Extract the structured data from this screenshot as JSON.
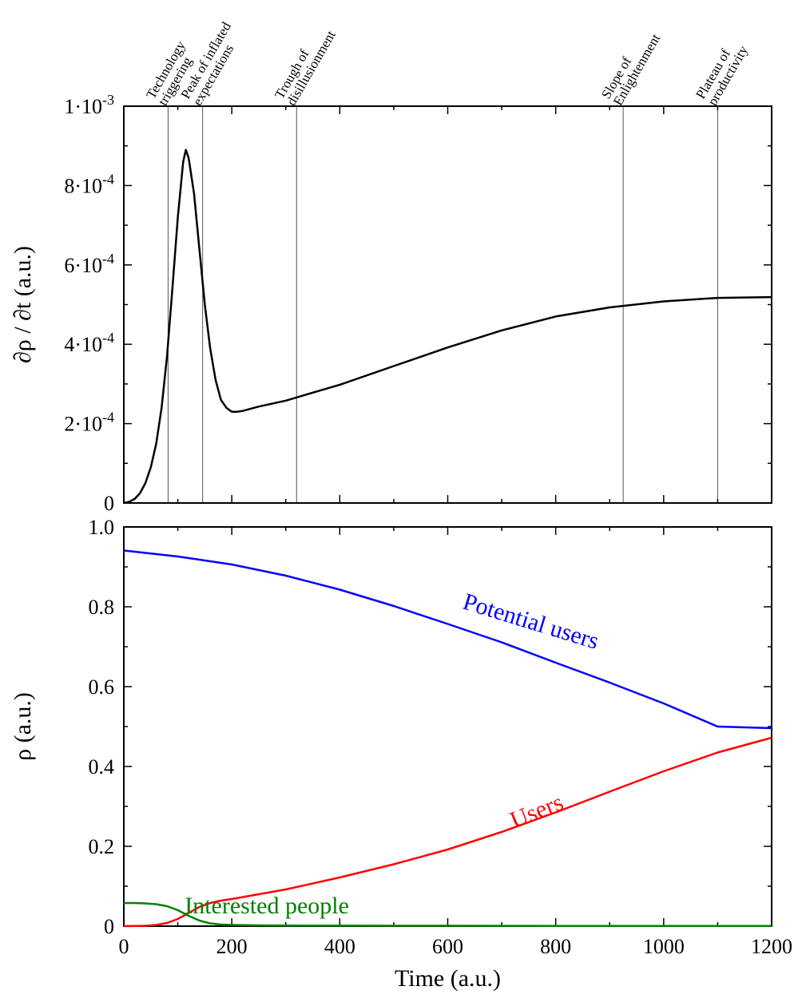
{
  "chart_data": [
    {
      "type": "line",
      "ylabel": "∂ρ / ∂t (a.u.)",
      "xlim": [
        0,
        1200
      ],
      "ylim": [
        0,
        0.001
      ],
      "x_ticks": [
        0,
        200,
        400,
        600,
        800,
        1000,
        1200
      ],
      "y_ticks": [
        {
          "value": 0,
          "mantissa": "0",
          "exponent": ""
        },
        {
          "value": 0.0002,
          "mantissa": "2·10",
          "exponent": "-4"
        },
        {
          "value": 0.0004,
          "mantissa": "4·10",
          "exponent": "-4"
        },
        {
          "value": 0.0006,
          "mantissa": "6·10",
          "exponent": "-4"
        },
        {
          "value": 0.0008,
          "mantissa": "8·10",
          "exponent": "-4"
        },
        {
          "value": 0.001,
          "mantissa": "1·10",
          "exponent": "-3"
        }
      ],
      "phases": [
        {
          "x": 82,
          "lines": [
            "Technology",
            "triggering"
          ]
        },
        {
          "x": 146,
          "lines": [
            "Peak of inflated",
            "expectations"
          ]
        },
        {
          "x": 320,
          "lines": [
            "Trough of",
            "disillusionment"
          ]
        },
        {
          "x": 925,
          "lines": [
            "Slope of",
            "Enlightenment"
          ]
        },
        {
          "x": 1100,
          "lines": [
            "Plateau of",
            "productivity"
          ]
        }
      ],
      "series": [
        {
          "color": "#000000",
          "x": [
            0,
            10,
            20,
            30,
            40,
            50,
            60,
            70,
            80,
            90,
            100,
            110,
            115,
            120,
            130,
            140,
            150,
            160,
            170,
            180,
            190,
            200,
            210,
            220,
            250,
            300,
            350,
            400,
            500,
            600,
            700,
            800,
            900,
            1000,
            1100,
            1150,
            1200
          ],
          "y": [
            0,
            3e-06,
            1e-05,
            2.5e-05,
            5e-05,
            9e-05,
            0.00015,
            0.00024,
            0.00037,
            0.00054,
            0.00072,
            0.00086,
            0.00089,
            0.00087,
            0.00078,
            0.00064,
            0.0005,
            0.00039,
            0.00031,
            0.00026,
            0.00024,
            0.00023,
            0.00023,
            0.000232,
            0.000243,
            0.000258,
            0.000278,
            0.000298,
            0.000345,
            0.000392,
            0.000435,
            0.00047,
            0.000493,
            0.000508,
            0.000517,
            0.000518,
            0.000519
          ]
        }
      ]
    },
    {
      "type": "line",
      "xlabel": "Time (a.u.)",
      "ylabel": "ρ (a.u.)",
      "xlim": [
        0,
        1200
      ],
      "ylim": [
        0,
        1.0
      ],
      "x_ticks": [
        0,
        200,
        400,
        600,
        800,
        1000,
        1200
      ],
      "y_ticks": [
        0,
        0.2,
        0.4,
        0.6,
        0.8,
        1.0
      ],
      "series": [
        {
          "name": "Potential users",
          "color": "#0000ff",
          "label_x": 750,
          "label_y": 0.745,
          "label_angle": 17,
          "x": [
            0,
            100,
            200,
            300,
            400,
            500,
            600,
            700,
            800,
            900,
            1000,
            1100,
            1200
          ],
          "y": [
            0.941,
            0.926,
            0.906,
            0.878,
            0.843,
            0.802,
            0.757,
            0.711,
            0.66,
            0.61,
            0.558,
            0.5,
            0.496
          ]
        },
        {
          "name": "Users",
          "color": "#ff0000",
          "label_x": 770,
          "label_y": 0.27,
          "label_angle": -22,
          "x": [
            0,
            40,
            60,
            80,
            100,
            120,
            140,
            160,
            180,
            200,
            250,
            300,
            400,
            500,
            600,
            700,
            800,
            900,
            1000,
            1100,
            1200
          ],
          "y": [
            0,
            0.001,
            0.003,
            0.008,
            0.018,
            0.033,
            0.048,
            0.058,
            0.064,
            0.068,
            0.08,
            0.092,
            0.122,
            0.155,
            0.192,
            0.236,
            0.285,
            0.337,
            0.388,
            0.435,
            0.472
          ]
        },
        {
          "name": "Interested people",
          "color": "#008000",
          "label_x": 265,
          "label_y": 0.032,
          "label_angle": 0,
          "x": [
            0,
            20,
            40,
            60,
            80,
            100,
            120,
            140,
            160,
            180,
            200,
            250,
            300,
            400,
            500,
            600,
            700,
            800,
            900,
            1000,
            1100,
            1200
          ],
          "y": [
            0.058,
            0.058,
            0.057,
            0.055,
            0.05,
            0.04,
            0.026,
            0.014,
            0.007,
            0.004,
            0.003,
            0.002,
            0.0015,
            0.0012,
            0.001,
            0.001,
            0.0008,
            0.0007,
            0.0006,
            0.0005,
            0.0004,
            0.0004
          ]
        }
      ]
    }
  ]
}
